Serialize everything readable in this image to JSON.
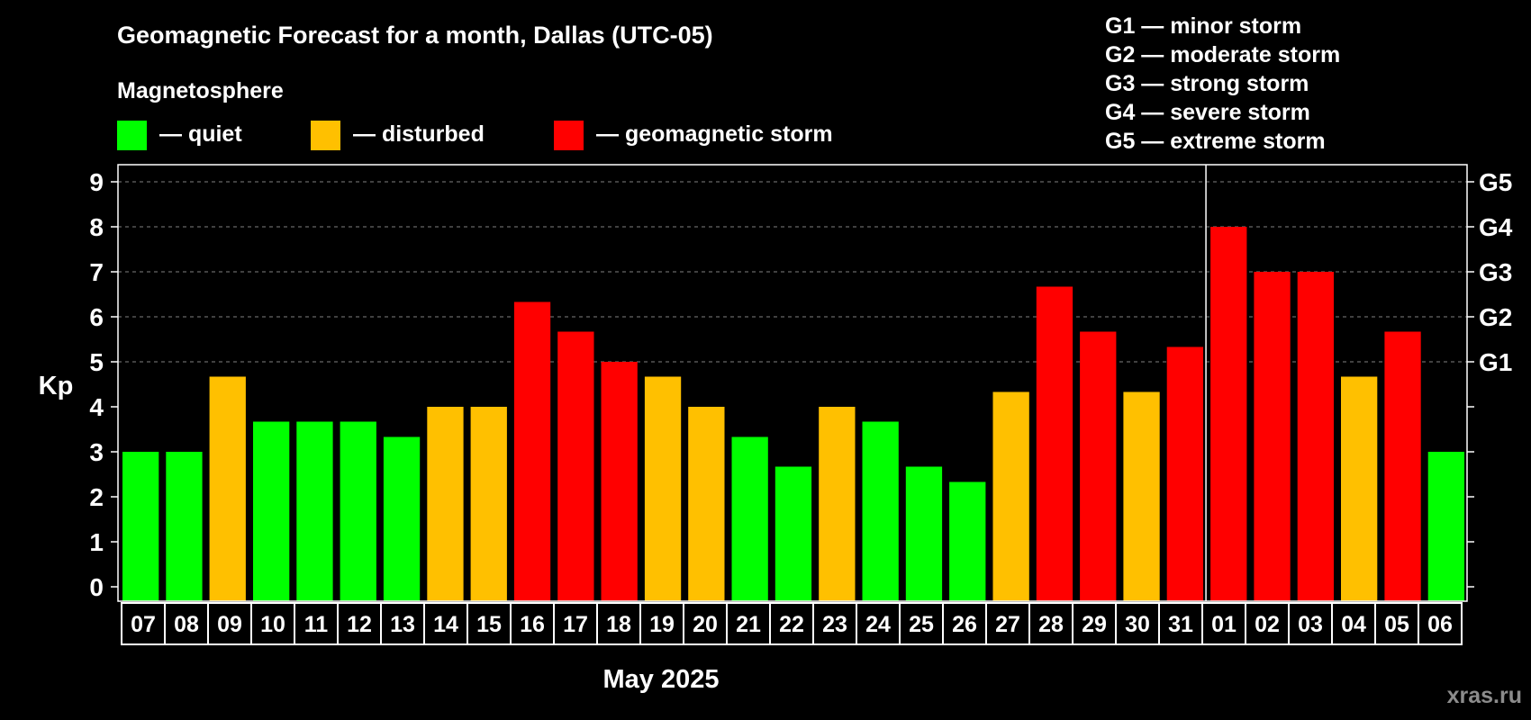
{
  "chart_data": {
    "type": "bar",
    "title": "Geomagnetic Forecast for a month, Dallas (UTC-05)",
    "legend": {
      "heading": "Magnetosphere",
      "items": [
        {
          "label": "— quiet",
          "color": "#00ff00"
        },
        {
          "label": "— disturbed",
          "color": "#ffc000"
        },
        {
          "label": "— geomagnetic storm",
          "color": "#ff0000"
        }
      ]
    },
    "storm_scale": [
      "G1 — minor storm",
      "G2 — moderate storm",
      "G3 — strong storm",
      "G4 — severe storm",
      "G5 — extreme storm"
    ],
    "ylabel": "Kp",
    "xlabel": "May 2025",
    "ylim": [
      0,
      9
    ],
    "yticks": [
      "0",
      "1",
      "2",
      "3",
      "4",
      "5",
      "6",
      "7",
      "8",
      "9"
    ],
    "right_ticks": [
      {
        "kp": 5,
        "label": "G1"
      },
      {
        "kp": 6,
        "label": "G2"
      },
      {
        "kp": 7,
        "label": "G3"
      },
      {
        "kp": 8,
        "label": "G4"
      },
      {
        "kp": 9,
        "label": "G5"
      }
    ],
    "grid": true,
    "month_divider_after": "31",
    "categories": [
      "07",
      "08",
      "09",
      "10",
      "11",
      "12",
      "13",
      "14",
      "15",
      "16",
      "17",
      "18",
      "19",
      "20",
      "21",
      "22",
      "23",
      "24",
      "25",
      "26",
      "27",
      "28",
      "29",
      "30",
      "31",
      "01",
      "02",
      "03",
      "04",
      "05",
      "06"
    ],
    "values": [
      3.0,
      3.0,
      4.67,
      3.67,
      3.67,
      3.67,
      3.33,
      4.0,
      4.0,
      6.33,
      5.67,
      5.0,
      4.67,
      4.0,
      3.33,
      2.67,
      4.0,
      3.67,
      2.67,
      2.33,
      4.33,
      6.67,
      5.67,
      4.33,
      5.33,
      8.0,
      7.0,
      7.0,
      4.67,
      5.67,
      3.0
    ],
    "levels": [
      "quiet",
      "quiet",
      "disturbed",
      "quiet",
      "quiet",
      "quiet",
      "quiet",
      "disturbed",
      "disturbed",
      "storm",
      "storm",
      "storm",
      "disturbed",
      "disturbed",
      "quiet",
      "quiet",
      "disturbed",
      "quiet",
      "quiet",
      "quiet",
      "disturbed",
      "storm",
      "storm",
      "disturbed",
      "storm",
      "storm",
      "storm",
      "storm",
      "disturbed",
      "storm",
      "quiet"
    ],
    "colors": {
      "quiet": "#00ff00",
      "disturbed": "#ffc000",
      "storm": "#ff0000",
      "text": "#ffffff",
      "grid": "#7f7f7f",
      "background": "#000000"
    }
  },
  "watermark": "xras.ru"
}
